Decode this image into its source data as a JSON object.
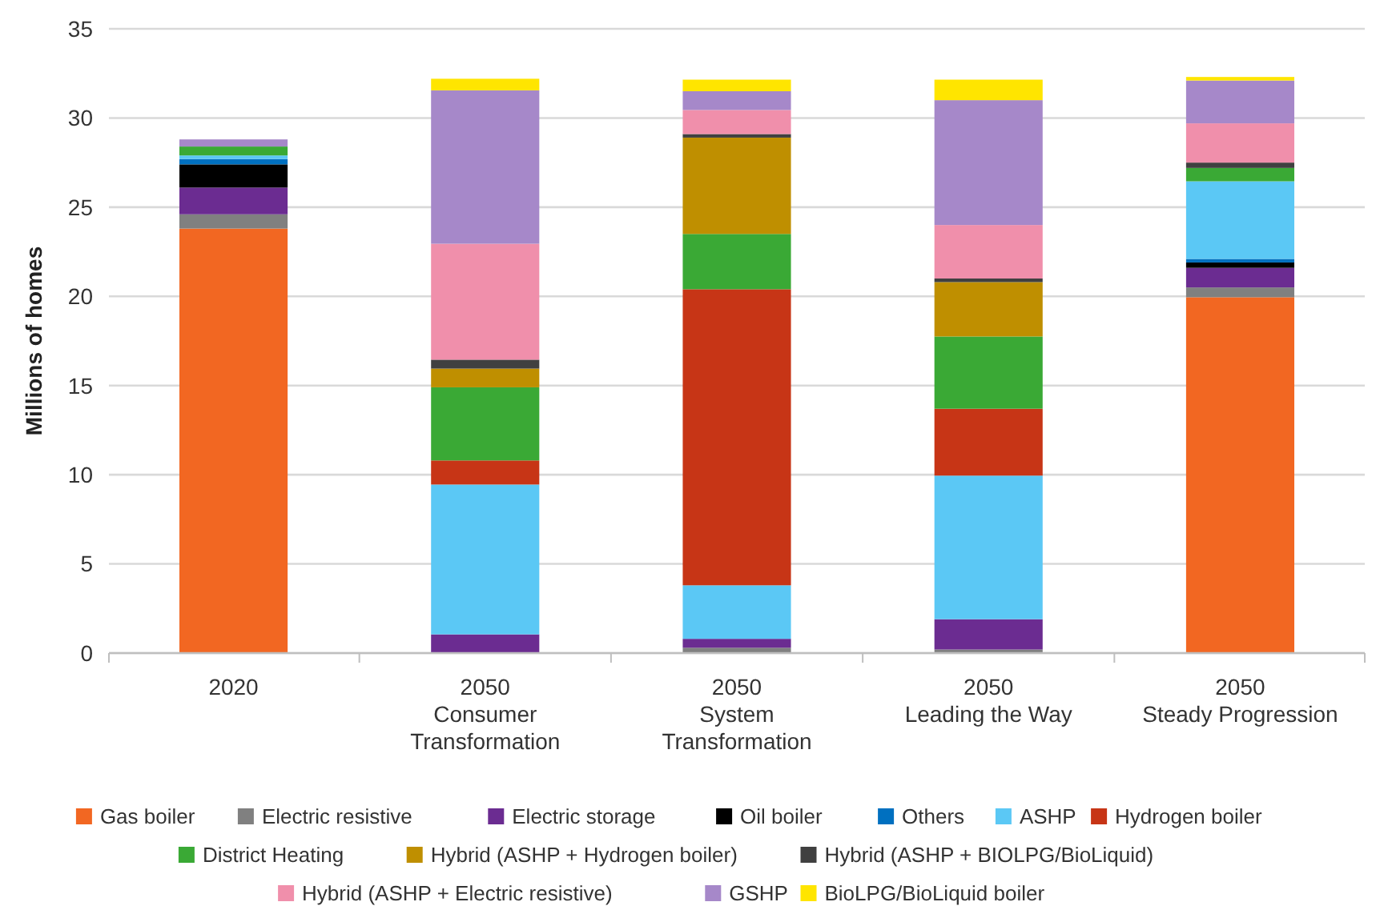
{
  "chart_data": {
    "type": "bar",
    "stacked": true,
    "ylabel": "Millions of homes",
    "categories": [
      "2020",
      "2050\nConsumer\nTransformation",
      "2050\nSystem\nTransformation",
      "2050\nLeading the Way",
      "2050\nSteady Progression"
    ],
    "ylim": [
      0,
      35
    ],
    "yticks": [
      0,
      5,
      10,
      15,
      20,
      25,
      30,
      35
    ],
    "grid": "y",
    "legend": "bottom",
    "series": [
      {
        "name": "Gas boiler",
        "color": "#f26722",
        "values": [
          23.8,
          0,
          0,
          0,
          19.95
        ]
      },
      {
        "name": "Electric resistive",
        "color": "#808080",
        "values": [
          0.8,
          0,
          0.3,
          0.2,
          0.55
        ]
      },
      {
        "name": "Electric storage",
        "color": "#6b2c91",
        "values": [
          1.5,
          1.05,
          0.5,
          1.7,
          1.1
        ]
      },
      {
        "name": "Oil boiler",
        "color": "#000000",
        "values": [
          1.3,
          0,
          0,
          0,
          0.3
        ]
      },
      {
        "name": "Others",
        "color": "#0070c0",
        "values": [
          0.3,
          0,
          0,
          0,
          0.2
        ]
      },
      {
        "name": "ASHP",
        "color": "#5bc8f5",
        "values": [
          0.2,
          8.4,
          3.0,
          8.05,
          4.35
        ]
      },
      {
        "name": "Hydrogen boiler",
        "color": "#c73516",
        "values": [
          0,
          1.35,
          16.6,
          3.75,
          0
        ]
      },
      {
        "name": "District Heating",
        "color": "#3aa935",
        "values": [
          0.5,
          4.1,
          3.1,
          4.05,
          0.75
        ]
      },
      {
        "name": "Hybrid (ASHP + Hydrogen boiler)",
        "color": "#bf8f00",
        "values": [
          0,
          1.05,
          5.4,
          3.05,
          0
        ]
      },
      {
        "name": "Hybrid (ASHP + BIOLPG/BioLiquid)",
        "color": "#404040",
        "values": [
          0,
          0.5,
          0.2,
          0.2,
          0.3
        ]
      },
      {
        "name": "Hybrid (ASHP + Electric resistive)",
        "color": "#f08fab",
        "values": [
          0,
          6.5,
          1.35,
          3.0,
          2.2
        ]
      },
      {
        "name": "GSHP",
        "color": "#a688c9",
        "values": [
          0.4,
          8.6,
          1.05,
          7.0,
          2.4
        ]
      },
      {
        "name": "BioLPG/BioLiquid boiler",
        "color": "#ffe500",
        "values": [
          0,
          0.65,
          0.65,
          1.15,
          0.2
        ]
      }
    ]
  }
}
